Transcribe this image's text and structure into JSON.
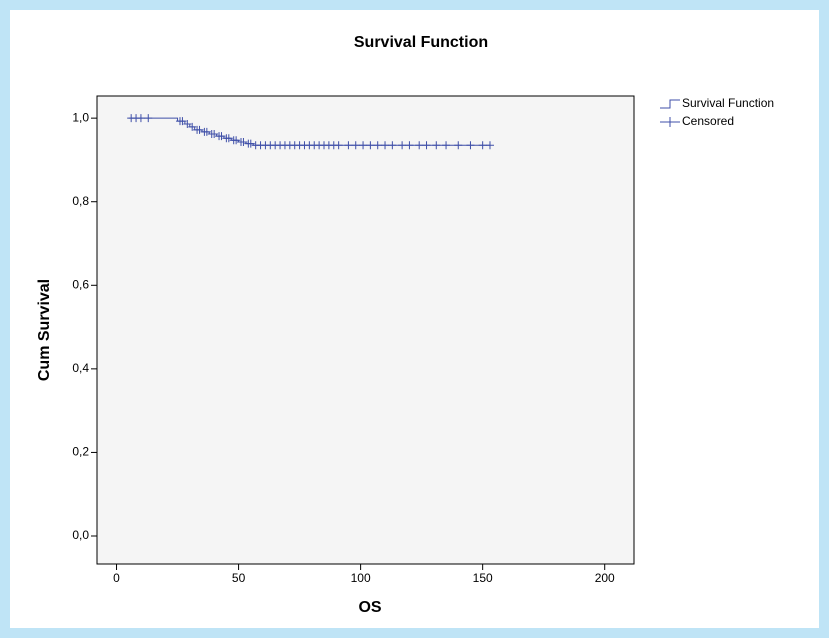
{
  "chart_data": {
    "type": "step",
    "title": "Survival Function",
    "x_label": "OS",
    "y_label": "Cum Survival",
    "xlim": [
      -8,
      212
    ],
    "ylim": [
      -0.067,
      1.053
    ],
    "xticks": [
      0,
      50,
      100,
      150,
      200
    ],
    "yticks": [
      {
        "value": 0,
        "label": "0,0"
      },
      {
        "value": 0.2,
        "label": "0,2"
      },
      {
        "value": 0.4,
        "label": "0,4"
      },
      {
        "value": 0.6,
        "label": "0,6"
      },
      {
        "value": 0.8,
        "label": "0,8"
      },
      {
        "value": 1,
        "label": "1,0"
      }
    ],
    "legend_position": "right",
    "series": [
      {
        "name": "Survival Function",
        "color": "#3f4fa8",
        "draw": "step",
        "x": [
          5,
          25,
          28,
          30,
          32,
          35,
          38,
          41,
          44,
          47,
          50,
          53,
          56,
          153
        ],
        "values": [
          1,
          0.993,
          0.986,
          0.979,
          0.972,
          0.967,
          0.962,
          0.957,
          0.952,
          0.947,
          0.943,
          0.939,
          0.935,
          0.935
        ]
      },
      {
        "name": "Censored",
        "color": "#3f4fa8",
        "draw": "plus",
        "x": [
          6,
          8,
          10,
          13,
          26,
          27,
          29,
          31,
          33,
          34,
          36,
          37,
          39,
          40,
          42,
          43,
          45,
          46,
          48,
          49,
          51,
          52,
          54,
          55,
          57,
          59,
          61,
          63,
          65,
          67,
          69,
          71,
          73,
          75,
          77,
          79,
          81,
          83,
          85,
          87,
          89,
          91,
          95,
          98,
          101,
          104,
          107,
          110,
          113,
          117,
          120,
          124,
          127,
          131,
          135,
          140,
          145,
          150,
          153
        ],
        "values": [
          1,
          1,
          1,
          1,
          0.993,
          0.993,
          0.986,
          0.979,
          0.972,
          0.972,
          0.967,
          0.967,
          0.962,
          0.962,
          0.957,
          0.957,
          0.952,
          0.952,
          0.947,
          0.947,
          0.943,
          0.943,
          0.939,
          0.939,
          0.935,
          0.935,
          0.935,
          0.935,
          0.935,
          0.935,
          0.935,
          0.935,
          0.935,
          0.935,
          0.935,
          0.935,
          0.935,
          0.935,
          0.935,
          0.935,
          0.935,
          0.935,
          0.935,
          0.935,
          0.935,
          0.935,
          0.935,
          0.935,
          0.935,
          0.935,
          0.935,
          0.935,
          0.935,
          0.935,
          0.935,
          0.935,
          0.935,
          0.935,
          0.935
        ]
      }
    ]
  }
}
